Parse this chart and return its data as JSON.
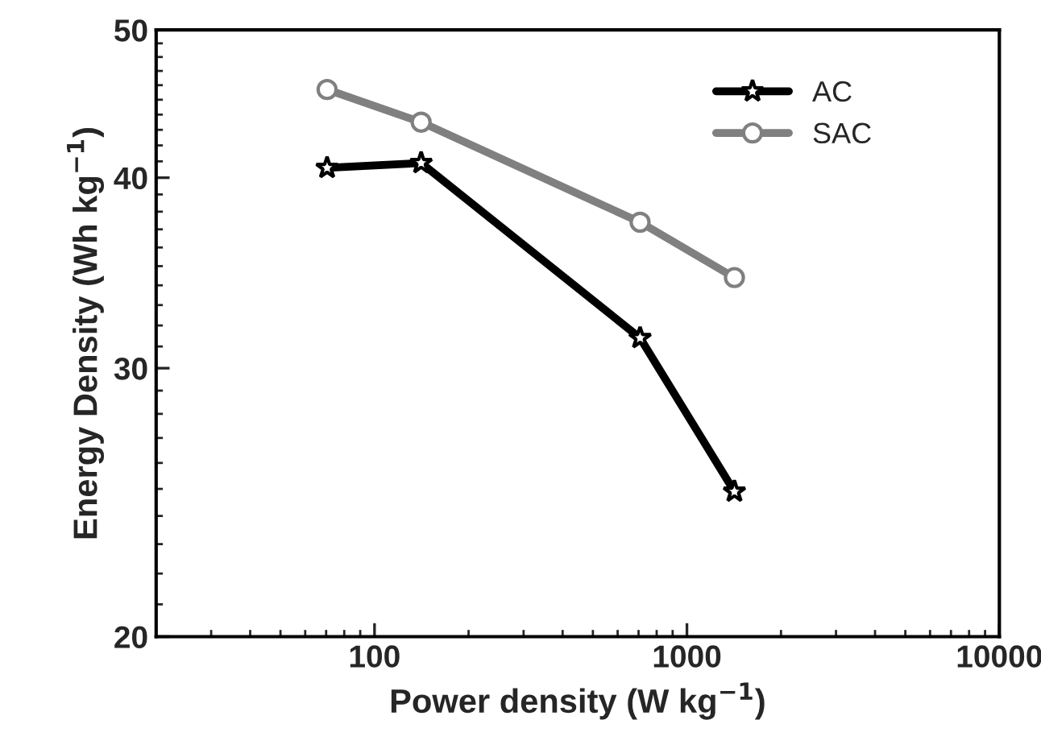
{
  "chart_data": {
    "type": "line",
    "xlabel": "Power density (W kg$^{−1}$)",
    "ylabel": "Energy Density (Wh kg$^{−1}$)",
    "log": "xy",
    "xlim": [
      20,
      10000
    ],
    "ylim": [
      20,
      50
    ],
    "xticks": [
      100,
      1000,
      10000
    ],
    "yticks": [
      20,
      30,
      40,
      50
    ],
    "grid": false,
    "legend": "top right",
    "line_style": "solid",
    "series": [
      {
        "name": "AC",
        "color": "#000000",
        "marker": "star",
        "x": [
          70.5,
          141,
          708,
          1419
        ],
        "values": [
          40.6,
          40.9,
          31.4,
          24.9
        ]
      },
      {
        "name": "SAC",
        "color": "#808080",
        "marker": "circle",
        "x": [
          70.5,
          141,
          708,
          1419
        ],
        "values": [
          45.7,
          43.5,
          37.4,
          34.4
        ]
      }
    ]
  }
}
